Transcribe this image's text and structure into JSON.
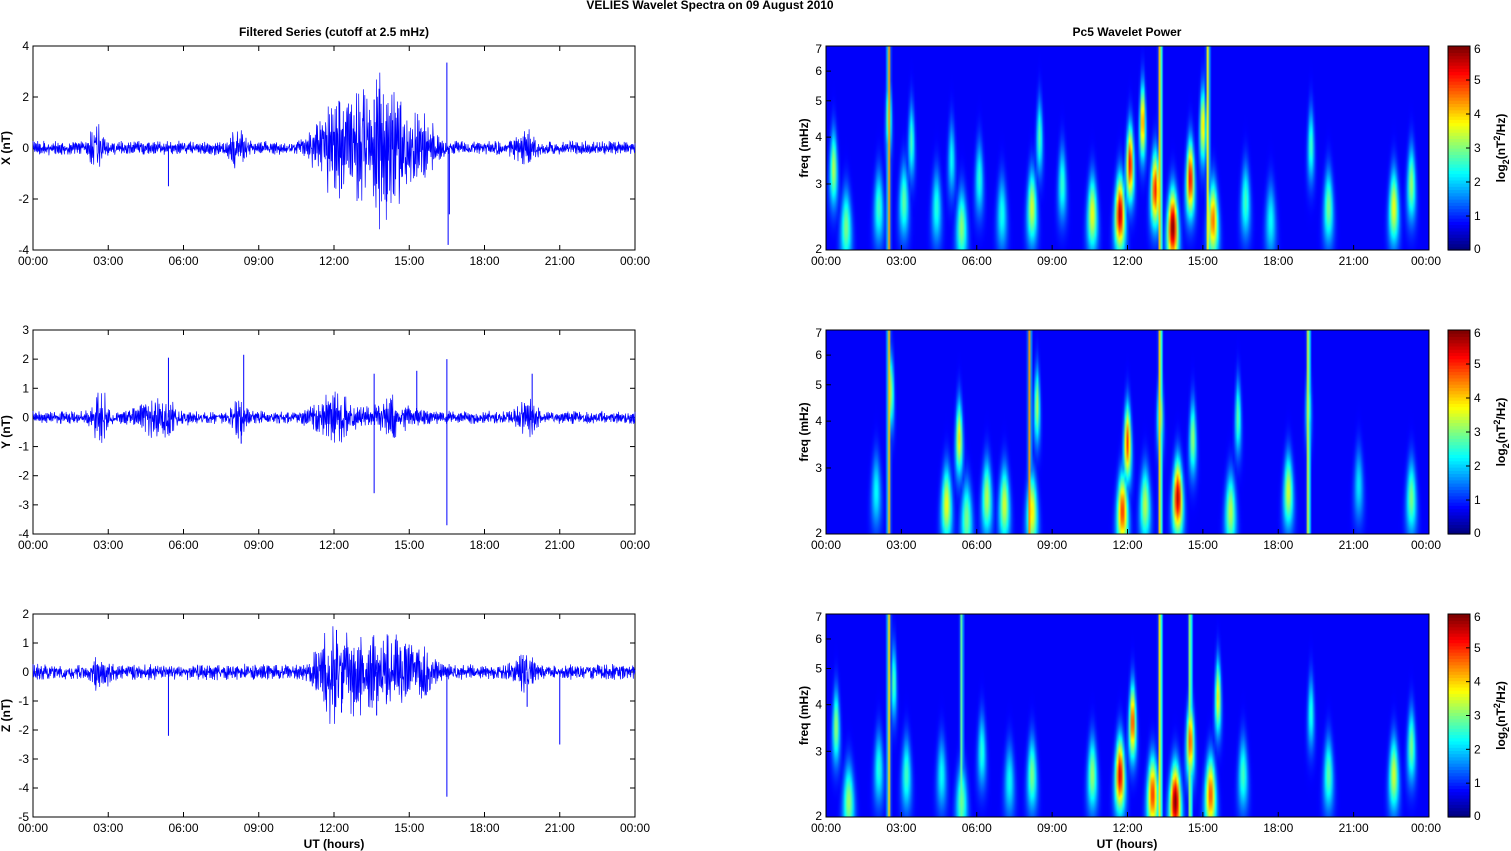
{
  "figure": {
    "title": "VELIES Wavelet Spectra on 09 August    2010",
    "left_title": "Filtered Series (cutoff at 2.5 mHz)",
    "right_title": "Pc5 Wavelet Power",
    "xlabel": "UT (hours)",
    "spec_ylabel": "freq (mHz)",
    "cbar_label_parts": [
      "log",
      "2",
      "(nT",
      "2",
      "/Hz)"
    ]
  },
  "chart_data": [
    {
      "type": "line",
      "component": "X",
      "ylabel": "X (nT)",
      "x_ticks": [
        "00:00",
        "03:00",
        "06:00",
        "09:00",
        "12:00",
        "15:00",
        "18:00",
        "21:00",
        "00:00"
      ],
      "xlim_hours": [
        0,
        24
      ],
      "ylim": [
        -4,
        4
      ],
      "y_ticks": [
        -4,
        -2,
        0,
        2,
        4
      ],
      "series": [
        {
          "color": "#0000ff",
          "base_amplitude": 0.25,
          "bursts": [
            {
              "t": 2.5,
              "amp": 0.8,
              "w": 0.25
            },
            {
              "t": 8.1,
              "amp": 0.6,
              "w": 0.3
            },
            {
              "t": 11.7,
              "amp": 1.0,
              "w": 0.6
            },
            {
              "t": 12.6,
              "amp": 1.5,
              "w": 0.8
            },
            {
              "t": 13.7,
              "amp": 1.9,
              "w": 0.6
            },
            {
              "t": 14.6,
              "amp": 1.5,
              "w": 0.9
            },
            {
              "t": 15.7,
              "amp": 0.7,
              "w": 0.4
            },
            {
              "t": 19.6,
              "amp": 0.5,
              "w": 0.4
            }
          ],
          "spikes": [
            {
              "t": 5.4,
              "v": -1.5
            },
            {
              "t": 12.2,
              "v": 1.85
            },
            {
              "t": 12.3,
              "v": -1.6
            },
            {
              "t": 13.6,
              "v": 1.9
            },
            {
              "t": 14.1,
              "v": -2.1
            },
            {
              "t": 16.5,
              "v": 3.35
            },
            {
              "t": 16.55,
              "v": -3.8
            },
            {
              "t": 16.6,
              "v": -2.6
            }
          ]
        }
      ]
    },
    {
      "type": "line",
      "component": "Y",
      "ylabel": "Y (nT)",
      "x_ticks": [
        "00:00",
        "03:00",
        "06:00",
        "09:00",
        "12:00",
        "15:00",
        "18:00",
        "21:00",
        "00:00"
      ],
      "xlim_hours": [
        0,
        24
      ],
      "ylim": [
        -4,
        3
      ],
      "y_ticks": [
        -4,
        -3,
        -2,
        -1,
        0,
        1,
        2,
        3
      ],
      "series": [
        {
          "color": "#0000ff",
          "base_amplitude": 0.2,
          "bursts": [
            {
              "t": 2.7,
              "amp": 0.75,
              "w": 0.3
            },
            {
              "t": 5.0,
              "amp": 0.5,
              "w": 0.8
            },
            {
              "t": 8.2,
              "amp": 0.5,
              "w": 0.3
            },
            {
              "t": 12.0,
              "amp": 0.7,
              "w": 0.8
            },
            {
              "t": 14.3,
              "amp": 0.5,
              "w": 0.8
            },
            {
              "t": 19.7,
              "amp": 0.45,
              "w": 0.4
            }
          ],
          "spikes": [
            {
              "t": 5.4,
              "v": 2.05
            },
            {
              "t": 8.4,
              "v": 2.15
            },
            {
              "t": 8.3,
              "v": -0.9
            },
            {
              "t": 13.6,
              "v": 1.5
            },
            {
              "t": 13.6,
              "v": -2.6
            },
            {
              "t": 15.3,
              "v": 1.6
            },
            {
              "t": 16.5,
              "v": 2.0
            },
            {
              "t": 16.5,
              "v": -3.7
            },
            {
              "t": 19.9,
              "v": 1.5
            }
          ]
        }
      ]
    },
    {
      "type": "line",
      "component": "Z",
      "ylabel": "Z (nT)",
      "x_ticks": [
        "00:00",
        "03:00",
        "06:00",
        "09:00",
        "12:00",
        "15:00",
        "18:00",
        "21:00",
        "00:00"
      ],
      "xlim_hours": [
        0,
        24
      ],
      "ylim": [
        -5,
        2
      ],
      "y_ticks": [
        -5,
        -4,
        -3,
        -2,
        -1,
        0,
        1,
        2
      ],
      "series": [
        {
          "color": "#0000ff",
          "base_amplitude": 0.25,
          "bursts": [
            {
              "t": 2.7,
              "amp": 0.5,
              "w": 0.3
            },
            {
              "t": 11.8,
              "amp": 0.9,
              "w": 0.6
            },
            {
              "t": 12.6,
              "amp": 1.1,
              "w": 0.8
            },
            {
              "t": 14.2,
              "amp": 1.0,
              "w": 1.0
            },
            {
              "t": 15.5,
              "amp": 0.6,
              "w": 0.5
            },
            {
              "t": 19.6,
              "amp": 0.45,
              "w": 0.4
            }
          ],
          "spikes": [
            {
              "t": 5.4,
              "v": -2.2
            },
            {
              "t": 12.1,
              "v": 1.45
            },
            {
              "t": 12.3,
              "v": -1.4
            },
            {
              "t": 13.7,
              "v": -1.5
            },
            {
              "t": 16.5,
              "v": -4.3
            },
            {
              "t": 19.7,
              "v": -1.2
            },
            {
              "t": 21.0,
              "v": -2.5
            }
          ]
        }
      ]
    },
    {
      "type": "heatmap",
      "component": "X",
      "title": "Pc5 Wavelet Power",
      "ylabel": "freq (mHz)",
      "x_ticks": [
        "00:00",
        "03:00",
        "06:00",
        "09:00",
        "12:00",
        "15:00",
        "18:00",
        "21:00",
        "00:00"
      ],
      "y_scale": "log",
      "ylim_mHz": [
        2,
        7
      ],
      "y_ticks": [
        2,
        3,
        4,
        5,
        6,
        7
      ],
      "colorbar": {
        "range": [
          0,
          6
        ],
        "ticks": [
          0,
          1,
          2,
          3,
          4,
          5,
          6
        ],
        "colormap": "jet"
      },
      "blobs": [
        {
          "t": 0.3,
          "f": 3.3,
          "p": 3.0
        },
        {
          "t": 0.8,
          "f": 2.3,
          "p": 2.6
        },
        {
          "t": 2.1,
          "f": 2.6,
          "p": 2.2
        },
        {
          "t": 2.5,
          "f": 4.6,
          "p": 3.2
        },
        {
          "t": 3.1,
          "f": 2.7,
          "p": 2.4
        },
        {
          "t": 3.4,
          "f": 3.9,
          "p": 2.2
        },
        {
          "t": 4.4,
          "f": 2.6,
          "p": 2.0
        },
        {
          "t": 5.0,
          "f": 3.5,
          "p": 1.8
        },
        {
          "t": 5.4,
          "f": 2.3,
          "p": 2.7
        },
        {
          "t": 6.1,
          "f": 3.1,
          "p": 2.0
        },
        {
          "t": 7.0,
          "f": 2.5,
          "p": 1.9
        },
        {
          "t": 8.2,
          "f": 2.6,
          "p": 3.2
        },
        {
          "t": 8.5,
          "f": 4.0,
          "p": 2.3
        },
        {
          "t": 9.4,
          "f": 3.0,
          "p": 2.1
        },
        {
          "t": 10.6,
          "f": 2.5,
          "p": 3.4
        },
        {
          "t": 11.7,
          "f": 2.5,
          "p": 5.6
        },
        {
          "t": 12.1,
          "f": 3.4,
          "p": 5.2
        },
        {
          "t": 12.6,
          "f": 4.4,
          "p": 4.4
        },
        {
          "t": 13.1,
          "f": 2.9,
          "p": 5.0
        },
        {
          "t": 13.8,
          "f": 2.3,
          "p": 6.0
        },
        {
          "t": 14.5,
          "f": 3.1,
          "p": 5.2
        },
        {
          "t": 15.0,
          "f": 4.3,
          "p": 3.8
        },
        {
          "t": 15.4,
          "f": 2.4,
          "p": 4.4
        },
        {
          "t": 16.7,
          "f": 2.7,
          "p": 2.2
        },
        {
          "t": 17.7,
          "f": 2.4,
          "p": 1.8
        },
        {
          "t": 19.3,
          "f": 3.8,
          "p": 2.2
        },
        {
          "t": 20.0,
          "f": 2.6,
          "p": 2.6
        },
        {
          "t": 22.6,
          "f": 2.6,
          "p": 3.4
        },
        {
          "t": 23.3,
          "f": 3.0,
          "p": 2.8
        }
      ],
      "streaks": [
        {
          "t": 2.5,
          "p": 4.2
        },
        {
          "t": 13.3,
          "p": 4.5
        },
        {
          "t": 15.2,
          "p": 3.5
        }
      ]
    },
    {
      "type": "heatmap",
      "component": "Y",
      "title": "",
      "ylabel": "freq (mHz)",
      "x_ticks": [
        "00:00",
        "03:00",
        "06:00",
        "09:00",
        "12:00",
        "15:00",
        "18:00",
        "21:00",
        "00:00"
      ],
      "y_scale": "log",
      "ylim_mHz": [
        2,
        7
      ],
      "y_ticks": [
        2,
        3,
        4,
        5,
        6,
        7
      ],
      "colorbar": {
        "range": [
          0,
          6
        ],
        "ticks": [
          0,
          1,
          2,
          3,
          4,
          5,
          6
        ],
        "colormap": "jet"
      },
      "blobs": [
        {
          "t": 2.0,
          "f": 2.6,
          "p": 1.8
        },
        {
          "t": 2.6,
          "f": 4.8,
          "p": 2.8
        },
        {
          "t": 4.8,
          "f": 2.4,
          "p": 3.4
        },
        {
          "t": 5.3,
          "f": 3.6,
          "p": 3.6
        },
        {
          "t": 5.6,
          "f": 2.2,
          "p": 2.6
        },
        {
          "t": 6.4,
          "f": 2.5,
          "p": 3.0
        },
        {
          "t": 7.1,
          "f": 2.4,
          "p": 3.2
        },
        {
          "t": 8.2,
          "f": 2.3,
          "p": 3.6
        },
        {
          "t": 8.4,
          "f": 4.4,
          "p": 3.0
        },
        {
          "t": 11.8,
          "f": 2.3,
          "p": 4.8
        },
        {
          "t": 12.0,
          "f": 3.5,
          "p": 4.8
        },
        {
          "t": 12.7,
          "f": 2.4,
          "p": 3.0
        },
        {
          "t": 13.3,
          "f": 4.2,
          "p": 3.2
        },
        {
          "t": 14.0,
          "f": 2.5,
          "p": 5.6
        },
        {
          "t": 14.6,
          "f": 3.6,
          "p": 2.8
        },
        {
          "t": 16.1,
          "f": 2.3,
          "p": 3.0
        },
        {
          "t": 16.4,
          "f": 4.1,
          "p": 2.4
        },
        {
          "t": 18.4,
          "f": 2.6,
          "p": 3.2
        },
        {
          "t": 19.2,
          "f": 4.4,
          "p": 2.4
        },
        {
          "t": 21.2,
          "f": 2.7,
          "p": 1.6
        },
        {
          "t": 23.3,
          "f": 2.5,
          "p": 2.6
        }
      ],
      "streaks": [
        {
          "t": 2.5,
          "p": 4.0
        },
        {
          "t": 8.1,
          "p": 4.2
        },
        {
          "t": 13.3,
          "p": 4.4
        },
        {
          "t": 19.2,
          "p": 3.6
        }
      ]
    },
    {
      "type": "heatmap",
      "component": "Z",
      "title": "",
      "ylabel": "freq (mHz)",
      "x_ticks": [
        "00:00",
        "03:00",
        "06:00",
        "09:00",
        "12:00",
        "15:00",
        "18:00",
        "21:00",
        "00:00"
      ],
      "y_scale": "log",
      "ylim_mHz": [
        2,
        7
      ],
      "y_ticks": [
        2,
        3,
        4,
        5,
        6,
        7
      ],
      "colorbar": {
        "range": [
          0,
          6
        ],
        "ticks": [
          0,
          1,
          2,
          3,
          4,
          5,
          6
        ],
        "colormap": "jet"
      },
      "blobs": [
        {
          "t": 0.4,
          "f": 3.5,
          "p": 2.8
        },
        {
          "t": 0.9,
          "f": 2.2,
          "p": 2.8
        },
        {
          "t": 2.1,
          "f": 2.7,
          "p": 2.0
        },
        {
          "t": 2.7,
          "f": 4.6,
          "p": 2.4
        },
        {
          "t": 3.2,
          "f": 2.6,
          "p": 2.2
        },
        {
          "t": 4.6,
          "f": 2.6,
          "p": 1.8
        },
        {
          "t": 5.4,
          "f": 2.2,
          "p": 2.5
        },
        {
          "t": 6.2,
          "f": 3.0,
          "p": 2.0
        },
        {
          "t": 7.3,
          "f": 2.5,
          "p": 1.8
        },
        {
          "t": 8.2,
          "f": 2.6,
          "p": 2.6
        },
        {
          "t": 10.6,
          "f": 2.6,
          "p": 2.8
        },
        {
          "t": 11.7,
          "f": 2.6,
          "p": 5.4
        },
        {
          "t": 12.2,
          "f": 3.6,
          "p": 4.8
        },
        {
          "t": 13.0,
          "f": 2.3,
          "p": 4.8
        },
        {
          "t": 13.9,
          "f": 2.2,
          "p": 6.0
        },
        {
          "t": 14.5,
          "f": 3.2,
          "p": 4.6
        },
        {
          "t": 15.3,
          "f": 2.3,
          "p": 4.6
        },
        {
          "t": 15.6,
          "f": 4.2,
          "p": 3.6
        },
        {
          "t": 16.6,
          "f": 2.6,
          "p": 2.2
        },
        {
          "t": 19.3,
          "f": 3.8,
          "p": 2.0
        },
        {
          "t": 20.0,
          "f": 2.6,
          "p": 2.4
        },
        {
          "t": 22.6,
          "f": 2.6,
          "p": 3.2
        },
        {
          "t": 23.3,
          "f": 3.1,
          "p": 2.6
        }
      ],
      "streaks": [
        {
          "t": 2.5,
          "p": 3.8
        },
        {
          "t": 5.4,
          "p": 2.6
        },
        {
          "t": 13.3,
          "p": 4.2
        },
        {
          "t": 14.5,
          "p": 3.4
        }
      ]
    }
  ]
}
